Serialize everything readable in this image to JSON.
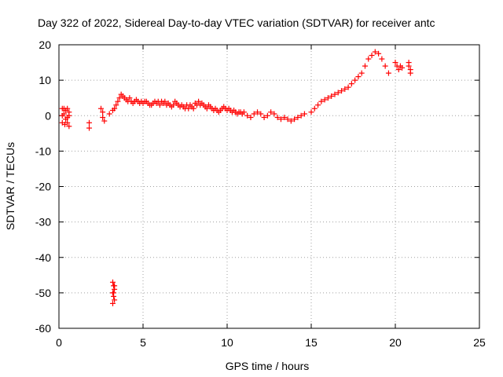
{
  "chart_data": {
    "type": "scatter",
    "title": "Day 322 of 2022, Sidereal Day-to-day VTEC variation (SDTVAR) for receiver antc",
    "xlabel": "GPS time / hours",
    "ylabel": "SDTVAR / TECUs",
    "xlim": [
      0,
      25
    ],
    "ylim": [
      -60,
      20
    ],
    "xticks": [
      0,
      5,
      10,
      15,
      20,
      25
    ],
    "yticks": [
      -60,
      -50,
      -40,
      -30,
      -20,
      -10,
      0,
      10,
      20
    ],
    "grid": true,
    "marker": "plus",
    "color": "#ff0000",
    "series": [
      {
        "name": "SDTVAR",
        "x": [
          0.2,
          0.3,
          0.4,
          0.5,
          0.6,
          0.2,
          0.3,
          0.4,
          0.5,
          0.6,
          0.2,
          0.35,
          0.5,
          0.6,
          1.8,
          1.8,
          2.5,
          2.6,
          2.6,
          2.7,
          3.0,
          3.2,
          3.3,
          3.4,
          3.5,
          3.6,
          3.7,
          3.8,
          3.9,
          4.0,
          4.1,
          4.2,
          4.3,
          4.4,
          4.5,
          4.6,
          4.7,
          4.8,
          4.9,
          5.0,
          5.1,
          5.2,
          5.3,
          5.4,
          5.5,
          5.6,
          5.7,
          5.8,
          5.9,
          6.0,
          6.1,
          6.2,
          6.3,
          6.4,
          6.5,
          6.6,
          6.7,
          6.8,
          6.9,
          7.0,
          7.1,
          7.2,
          7.3,
          7.4,
          7.5,
          7.6,
          7.7,
          7.8,
          7.9,
          8.0,
          8.1,
          8.2,
          8.3,
          8.4,
          8.5,
          8.6,
          8.7,
          8.8,
          8.9,
          9.0,
          9.1,
          9.2,
          9.3,
          9.4,
          9.5,
          9.6,
          9.7,
          9.8,
          9.9,
          10.0,
          10.1,
          10.2,
          10.3,
          10.4,
          10.5,
          10.6,
          10.7,
          10.8,
          10.9,
          11.0,
          11.2,
          11.4,
          11.6,
          11.8,
          12.0,
          12.2,
          12.4,
          12.6,
          12.8,
          13.0,
          13.2,
          13.4,
          13.6,
          13.8,
          14.0,
          14.2,
          14.4,
          14.6,
          15.0,
          15.2,
          15.4,
          15.6,
          15.8,
          16.0,
          16.2,
          16.4,
          16.6,
          16.8,
          17.0,
          17.2,
          17.4,
          17.6,
          17.8,
          18.0,
          18.2,
          18.4,
          18.6,
          18.8,
          19.0,
          19.2,
          19.4,
          19.6,
          20.0,
          20.1,
          20.2,
          20.3,
          20.4,
          20.8,
          20.9,
          20.8,
          20.9,
          3.2,
          3.25,
          3.3,
          3.2,
          3.25,
          3.3,
          3.2,
          3.25,
          3.3
        ],
        "y": [
          2,
          2,
          1.5,
          2,
          1,
          0,
          0.5,
          -1,
          -0.5,
          0,
          -2,
          -2.5,
          -2,
          -3,
          -3.5,
          -2,
          2,
          1,
          -0.5,
          -1.5,
          0.5,
          1.5,
          2,
          3,
          4,
          5,
          6,
          5.5,
          5,
          4.5,
          4,
          5,
          4,
          3.5,
          4,
          4.5,
          4,
          3.5,
          4,
          3.5,
          4,
          4,
          3.5,
          3,
          3,
          3.5,
          4,
          3.5,
          4,
          3,
          4,
          3.5,
          4,
          3,
          3.5,
          3,
          2.5,
          3,
          4,
          3.5,
          3,
          2.5,
          3,
          2.5,
          2,
          3,
          2,
          3,
          2.5,
          2,
          3.5,
          3,
          4,
          3,
          3.5,
          3,
          2.5,
          2,
          3,
          2.5,
          2,
          1.5,
          2,
          1.5,
          1,
          1.5,
          2,
          2.5,
          2,
          1.5,
          2,
          1.5,
          1,
          1.5,
          1,
          0.5,
          1,
          1,
          0.5,
          1,
          0,
          -0.5,
          0.5,
          1,
          0.5,
          -0.5,
          0,
          1,
          0.5,
          -0.5,
          -1,
          -0.5,
          -1,
          -1.5,
          -1,
          -0.5,
          0,
          0.5,
          1,
          2,
          3,
          4,
          4.5,
          5,
          5.5,
          6,
          6.5,
          7,
          7.5,
          8,
          9,
          10,
          11,
          12,
          14,
          16,
          17,
          18,
          17.5,
          16,
          14,
          12,
          15,
          14,
          13,
          14,
          13.5,
          14,
          13,
          15,
          12,
          -47,
          -48,
          -49,
          -50,
          -51,
          -52,
          -53,
          -50,
          -48
        ]
      }
    ]
  }
}
